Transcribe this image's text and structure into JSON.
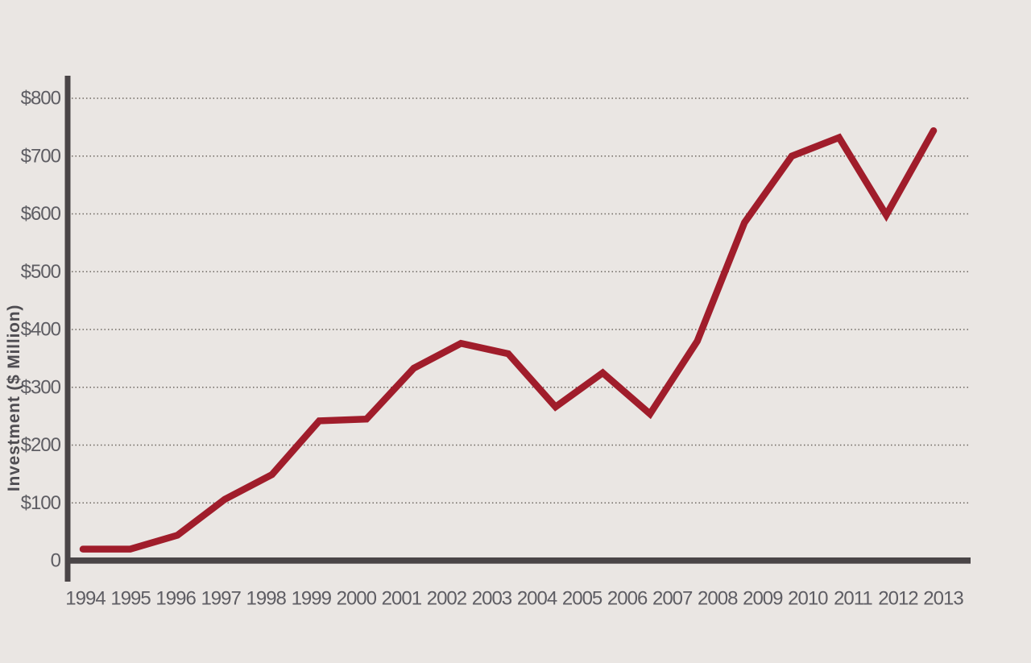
{
  "chart_data": {
    "type": "line",
    "title": "",
    "xlabel": "",
    "ylabel": "Investment ($ Million)",
    "ylim": [
      0,
      800
    ],
    "grid": "horizontal dotted gridlines every 100, from $100 to $800",
    "legend": "none",
    "x_tick_labels": [
      "1994",
      "1995",
      "1996",
      "1997",
      "1998",
      "1999",
      "2000",
      "2001",
      "2002",
      "2003",
      "2004",
      "2005",
      "2006",
      "2007",
      "2008",
      "2009",
      "2010",
      "2011",
      "2012",
      "2013"
    ],
    "y_ticks": [
      {
        "label": "$800",
        "value": 800
      },
      {
        "label": "$700",
        "value": 700
      },
      {
        "label": "$600",
        "value": 600
      },
      {
        "label": "$500",
        "value": 500
      },
      {
        "label": "$400",
        "value": 400
      },
      {
        "label": "$300",
        "value": 300
      },
      {
        "label": "$200",
        "value": 200
      },
      {
        "label": "$100",
        "value": 100
      },
      {
        "label": "0",
        "value": 0
      }
    ],
    "series": [
      {
        "name": "Investment",
        "color": "#A01D2B",
        "years": [
          1994,
          1995,
          1996,
          1997,
          1998,
          1999,
          2000,
          2001,
          2002,
          2003,
          2004,
          2005,
          2006,
          2007,
          2008,
          2009,
          2010,
          2011,
          2012
        ],
        "values": [
          20,
          20,
          44,
          106,
          149,
          242,
          245,
          333,
          376,
          358,
          266,
          325,
          254,
          380,
          585,
          700,
          732,
          598,
          744
        ]
      }
    ]
  },
  "colors": {
    "background": "#EAE6E3",
    "line": "#A01D2B",
    "axis": "#4A4547",
    "grid_dots": "#6E6862",
    "tick_text": "#5E5D63",
    "axis_title_text": "#4F4D52"
  }
}
